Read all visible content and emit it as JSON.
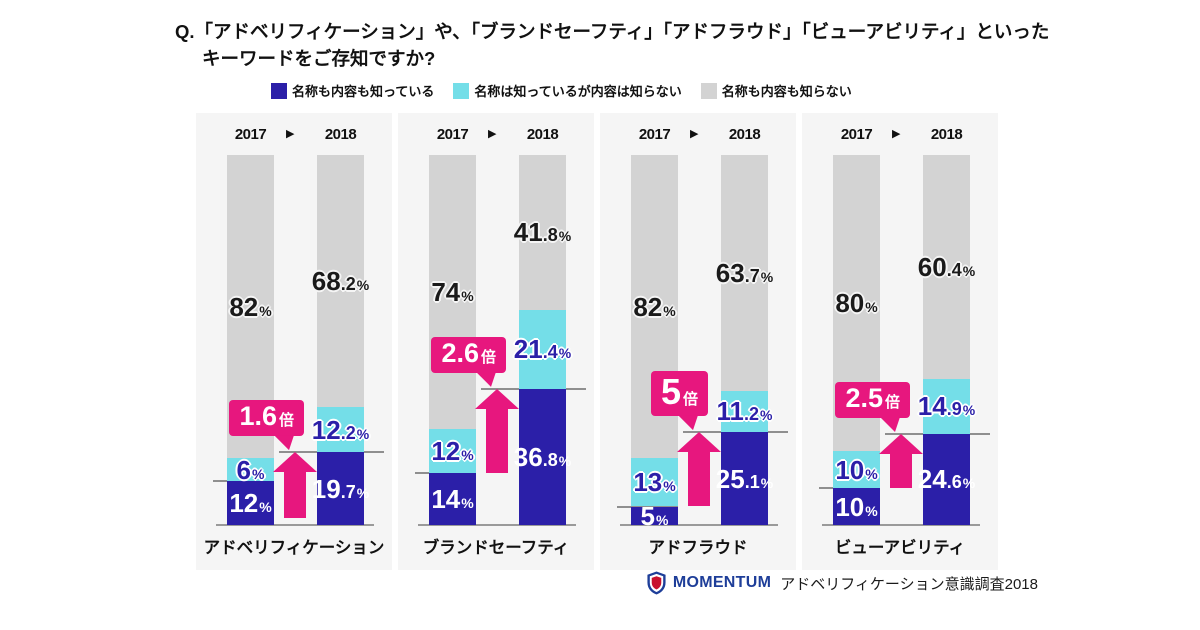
{
  "question": {
    "line1": "Q.「アドベリフィケーション」や、「ブランドセーフティ」「アドフラウド」「ビューアビリティ」といった",
    "line2": "キーワードをご存知ですか?"
  },
  "icons": {
    "year_arrow": "▶"
  },
  "footer": {
    "brand": "MOMENTUM",
    "caption": "アドベリフィケーション意識調査2018"
  },
  "colors": {
    "accent_magenta": "#E7177E",
    "bar_known": "#2B1FA8",
    "bar_name_only": "#74DEE8",
    "bar_unknown": "#D3D3D3",
    "panel_bg": "#F5F5F5",
    "brand_navy": "#1E3E99",
    "logo_red": "#C8102E",
    "line_gray": "#8F8F8F"
  },
  "chart_data": {
    "type": "bar",
    "variant": "stacked-100-percent",
    "unit": "%",
    "grid": false,
    "legend_position": "top",
    "years": [
      "2017",
      "2018"
    ],
    "categories": [
      "アドベリフィケーション",
      "ブランドセーフティ",
      "アドフラウド",
      "ビューアビリティ"
    ],
    "series": [
      {
        "name": "名称も内容も知っている",
        "color": "#2B1FA8",
        "values_2017": [
          12,
          14,
          5,
          10
        ],
        "values_2018": [
          19.7,
          36.8,
          25.1,
          24.6
        ]
      },
      {
        "name": "名称は知っているが内容は知らない",
        "color": "#74DEE8",
        "values_2017": [
          6,
          12,
          13,
          10
        ],
        "values_2018": [
          12.2,
          21.4,
          11.2,
          14.9
        ]
      },
      {
        "name": "名称も内容も知らない",
        "color": "#D3D3D3",
        "values_2017": [
          82,
          74,
          82,
          80
        ],
        "values_2018": [
          68.2,
          41.8,
          63.7,
          60.4
        ]
      }
    ],
    "multipliers": [
      "1.6",
      "2.6",
      "5",
      "2.5"
    ],
    "multiplier_suffix": "倍"
  }
}
